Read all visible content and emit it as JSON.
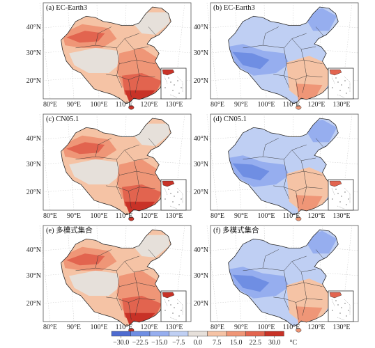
{
  "panels": [
    {
      "title": "(a) EC-Earth3",
      "variant": "hot"
    },
    {
      "title": "(b) EC-Earth3",
      "variant": "cold"
    },
    {
      "title": "(c) CN05.1",
      "variant": "hot"
    },
    {
      "title": "(d) CN05.1",
      "variant": "cold"
    },
    {
      "title": "(e) 多模式集合",
      "variant": "hot"
    },
    {
      "title": "(f) 多模式集合",
      "variant": "cold"
    }
  ],
  "lat_ticks": [
    "40°N",
    "30°N",
    "20°N"
  ],
  "lon_ticks": [
    "80°E",
    "90°E",
    "100°E",
    "110°E",
    "120°E",
    "130°E"
  ],
  "colorbar": {
    "ticks": [
      "−30.0",
      "−22.5",
      "−15.0",
      "−7.5",
      "0.0",
      "7.5",
      "15.0",
      "22.5",
      "30.0"
    ],
    "unit": "°C",
    "colors": [
      "#4e6bd0",
      "#6f8ee3",
      "#96aeef",
      "#bfcff3",
      "#e6e0da",
      "#f5c3a5",
      "#ef9677",
      "#e2644f",
      "#c83227"
    ]
  }
}
